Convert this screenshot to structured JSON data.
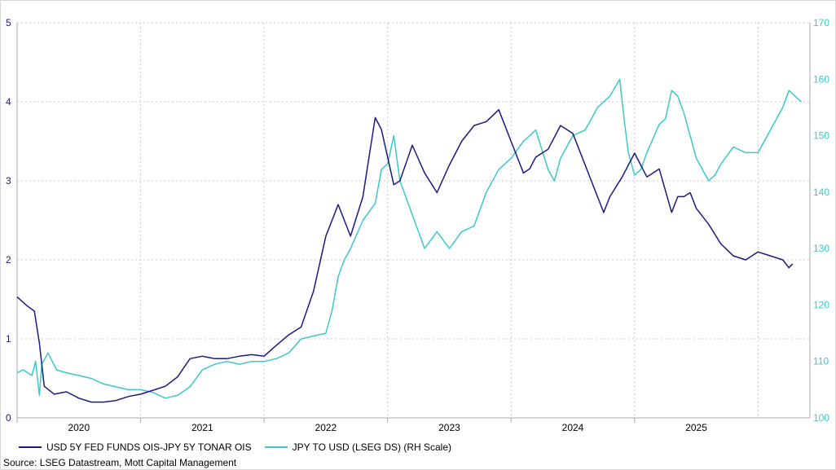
{
  "chart_data": {
    "type": "line",
    "x_range": [
      2019.5,
      2025.92
    ],
    "x_ticks": [
      "2020",
      "2021",
      "2022",
      "2023",
      "2024",
      "2025"
    ],
    "y_left": {
      "range": [
        0,
        5
      ],
      "ticks": [
        "0",
        "1",
        "2",
        "3",
        "4",
        "5"
      ]
    },
    "y_right": {
      "range": [
        100,
        170
      ],
      "ticks": [
        "100",
        "110",
        "120",
        "130",
        "140",
        "150",
        "160",
        "170"
      ]
    },
    "gridlines": "dotted",
    "series": [
      {
        "name": "USD 5Y FED FUNDS OIS-JPY 5Y TONAR OIS",
        "axis": "left",
        "color": "#1a1a80",
        "points": [
          [
            2019.5,
            1.53
          ],
          [
            2019.58,
            1.42
          ],
          [
            2019.64,
            1.35
          ],
          [
            2019.68,
            0.95
          ],
          [
            2019.72,
            0.4
          ],
          [
            2019.8,
            0.3
          ],
          [
            2019.9,
            0.33
          ],
          [
            2020.0,
            0.25
          ],
          [
            2020.1,
            0.2
          ],
          [
            2020.2,
            0.2
          ],
          [
            2020.3,
            0.22
          ],
          [
            2020.4,
            0.27
          ],
          [
            2020.5,
            0.3
          ],
          [
            2020.6,
            0.35
          ],
          [
            2020.7,
            0.4
          ],
          [
            2020.8,
            0.52
          ],
          [
            2020.9,
            0.75
          ],
          [
            2021.0,
            0.78
          ],
          [
            2021.1,
            0.75
          ],
          [
            2021.2,
            0.75
          ],
          [
            2021.3,
            0.78
          ],
          [
            2021.4,
            0.8
          ],
          [
            2021.5,
            0.78
          ],
          [
            2021.6,
            0.92
          ],
          [
            2021.7,
            1.05
          ],
          [
            2021.8,
            1.15
          ],
          [
            2021.9,
            1.6
          ],
          [
            2021.95,
            1.95
          ],
          [
            2022.0,
            2.3
          ],
          [
            2022.05,
            2.5
          ],
          [
            2022.1,
            2.7
          ],
          [
            2022.15,
            2.5
          ],
          [
            2022.2,
            2.3
          ],
          [
            2022.3,
            2.8
          ],
          [
            2022.35,
            3.3
          ],
          [
            2022.4,
            3.8
          ],
          [
            2022.45,
            3.65
          ],
          [
            2022.5,
            3.3
          ],
          [
            2022.55,
            2.95
          ],
          [
            2022.6,
            3.0
          ],
          [
            2022.7,
            3.45
          ],
          [
            2022.8,
            3.1
          ],
          [
            2022.9,
            2.85
          ],
          [
            2023.0,
            3.2
          ],
          [
            2023.1,
            3.5
          ],
          [
            2023.2,
            3.7
          ],
          [
            2023.3,
            3.75
          ],
          [
            2023.4,
            3.9
          ],
          [
            2023.5,
            3.5
          ],
          [
            2023.6,
            3.1
          ],
          [
            2023.65,
            3.15
          ],
          [
            2023.7,
            3.3
          ],
          [
            2023.8,
            3.4
          ],
          [
            2023.9,
            3.7
          ],
          [
            2024.0,
            3.6
          ],
          [
            2024.1,
            3.2
          ],
          [
            2024.15,
            3.0
          ],
          [
            2024.2,
            2.8
          ],
          [
            2024.25,
            2.6
          ],
          [
            2024.3,
            2.8
          ],
          [
            2024.4,
            3.05
          ],
          [
            2024.5,
            3.35
          ],
          [
            2024.6,
            3.05
          ],
          [
            2024.7,
            3.15
          ],
          [
            2024.8,
            2.6
          ],
          [
            2024.85,
            2.8
          ],
          [
            2024.9,
            2.8
          ],
          [
            2024.95,
            2.85
          ],
          [
            2025.0,
            2.65
          ],
          [
            2025.1,
            2.45
          ],
          [
            2025.2,
            2.2
          ],
          [
            2025.3,
            2.05
          ],
          [
            2025.4,
            2.0
          ],
          [
            2025.5,
            2.1
          ],
          [
            2025.6,
            2.05
          ],
          [
            2025.7,
            2.0
          ],
          [
            2025.75,
            1.9
          ],
          [
            2025.78,
            1.95
          ]
        ]
      },
      {
        "name": "JPY TO USD (LSEG DS) (RH Scale)",
        "axis": "right",
        "color": "#3cc8c8",
        "points": [
          [
            2019.5,
            108.0
          ],
          [
            2019.55,
            108.5
          ],
          [
            2019.62,
            107.5
          ],
          [
            2019.65,
            110.0
          ],
          [
            2019.68,
            104.0
          ],
          [
            2019.7,
            109.5
          ],
          [
            2019.75,
            111.5
          ],
          [
            2019.82,
            108.5
          ],
          [
            2019.9,
            108.0
          ],
          [
            2020.0,
            107.5
          ],
          [
            2020.1,
            107.0
          ],
          [
            2020.2,
            106.0
          ],
          [
            2020.3,
            105.5
          ],
          [
            2020.4,
            105.0
          ],
          [
            2020.5,
            105.0
          ],
          [
            2020.6,
            104.5
          ],
          [
            2020.7,
            103.5
          ],
          [
            2020.8,
            104.0
          ],
          [
            2020.9,
            105.5
          ],
          [
            2021.0,
            108.5
          ],
          [
            2021.1,
            109.5
          ],
          [
            2021.2,
            110.0
          ],
          [
            2021.3,
            109.5
          ],
          [
            2021.4,
            110.0
          ],
          [
            2021.5,
            110.0
          ],
          [
            2021.6,
            110.5
          ],
          [
            2021.7,
            111.5
          ],
          [
            2021.8,
            114.0
          ],
          [
            2021.9,
            114.5
          ],
          [
            2022.0,
            115.0
          ],
          [
            2022.05,
            119.0
          ],
          [
            2022.1,
            125.0
          ],
          [
            2022.15,
            128.0
          ],
          [
            2022.2,
            130.0
          ],
          [
            2022.3,
            135.0
          ],
          [
            2022.4,
            138.0
          ],
          [
            2022.45,
            144.0
          ],
          [
            2022.5,
            145.0
          ],
          [
            2022.55,
            150.0
          ],
          [
            2022.6,
            142.0
          ],
          [
            2022.7,
            136.0
          ],
          [
            2022.8,
            130.0
          ],
          [
            2022.9,
            133.0
          ],
          [
            2023.0,
            130.0
          ],
          [
            2023.1,
            133.0
          ],
          [
            2023.2,
            134.0
          ],
          [
            2023.3,
            140.0
          ],
          [
            2023.4,
            144.0
          ],
          [
            2023.5,
            146.0
          ],
          [
            2023.6,
            149.0
          ],
          [
            2023.7,
            151.0
          ],
          [
            2023.8,
            144.0
          ],
          [
            2023.85,
            142.0
          ],
          [
            2023.9,
            146.0
          ],
          [
            2024.0,
            150.0
          ],
          [
            2024.1,
            151.0
          ],
          [
            2024.2,
            155.0
          ],
          [
            2024.3,
            157.0
          ],
          [
            2024.38,
            160.0
          ],
          [
            2024.42,
            152.0
          ],
          [
            2024.45,
            147.0
          ],
          [
            2024.5,
            143.0
          ],
          [
            2024.55,
            144.0
          ],
          [
            2024.6,
            147.0
          ],
          [
            2024.7,
            152.0
          ],
          [
            2024.75,
            153.0
          ],
          [
            2024.8,
            158.0
          ],
          [
            2024.85,
            157.0
          ],
          [
            2024.9,
            154.0
          ],
          [
            2024.95,
            150.0
          ],
          [
            2025.0,
            146.0
          ],
          [
            2025.05,
            144.0
          ],
          [
            2025.1,
            142.0
          ],
          [
            2025.15,
            143.0
          ],
          [
            2025.2,
            145.0
          ],
          [
            2025.3,
            148.0
          ],
          [
            2025.4,
            147.0
          ],
          [
            2025.5,
            147.0
          ],
          [
            2025.6,
            151.0
          ],
          [
            2025.7,
            155.0
          ],
          [
            2025.75,
            158.0
          ],
          [
            2025.8,
            157.0
          ],
          [
            2025.85,
            156.0
          ]
        ]
      }
    ],
    "legend": [
      {
        "label": "USD 5Y FED FUNDS OIS-JPY 5Y TONAR OIS",
        "color": "#1a1a80"
      },
      {
        "label": "JPY TO USD (LSEG DS) (RH Scale)",
        "color": "#3cc8c8"
      }
    ],
    "legend_position": "bottom-left",
    "source": "Source: LSEG Datastream, Mott Capital Management"
  }
}
